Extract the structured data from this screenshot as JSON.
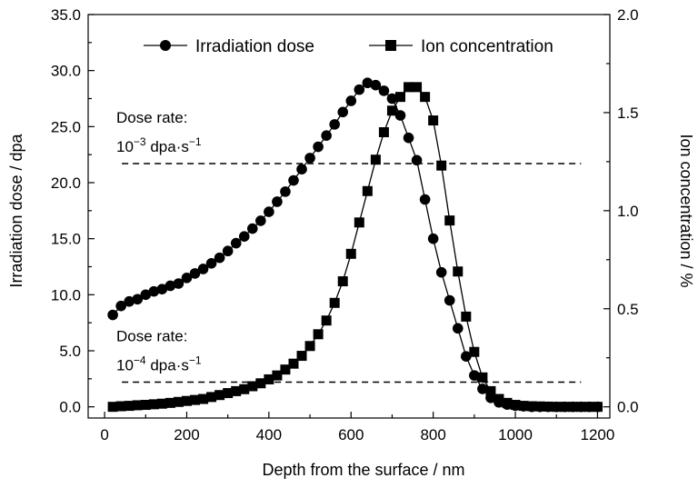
{
  "chart_data": {
    "type": "scatter",
    "title": "",
    "xlabel": "Depth from the surface / nm",
    "ylabel": "Irradiation dose / dpa",
    "y2label": "Ion concentration / %",
    "xlim": [
      -40,
      1230
    ],
    "ylim": [
      -1,
      35
    ],
    "y2lim": [
      -0.0571,
      2.0
    ],
    "x_ticks": [
      0,
      200,
      400,
      600,
      800,
      1000,
      1200
    ],
    "x_tick_labels": [
      "0",
      "200",
      "400",
      "600",
      "800",
      "1000",
      "1200"
    ],
    "y_ticks": [
      0,
      5,
      10,
      15,
      20,
      25,
      30,
      35
    ],
    "y_tick_labels": [
      "0.0",
      "5.0",
      "10.0",
      "15.0",
      "20.0",
      "25.0",
      "30.0",
      "35.0"
    ],
    "y2_ticks": [
      0,
      0.5,
      1.0,
      1.5,
      2.0
    ],
    "y2_tick_labels": [
      "0.0",
      "0.5",
      "1.0",
      "1.5",
      "2.0"
    ],
    "grid": false,
    "legend_position": "top",
    "legend": [
      "Irradiation dose",
      "Ion concentration"
    ],
    "series": [
      {
        "name": "Irradiation dose",
        "axis": "left",
        "marker": "circle",
        "x": [
          20,
          40,
          60,
          80,
          100,
          120,
          140,
          160,
          180,
          200,
          220,
          240,
          260,
          280,
          300,
          320,
          340,
          360,
          380,
          400,
          420,
          440,
          460,
          480,
          500,
          520,
          540,
          560,
          580,
          600,
          620,
          640,
          660,
          680,
          700,
          720,
          740,
          760,
          780,
          800,
          820,
          840,
          860,
          880,
          900,
          920,
          940,
          960,
          980,
          1000,
          1020,
          1040,
          1060,
          1080,
          1100,
          1120,
          1140,
          1160,
          1180,
          1200
        ],
        "y": [
          8.2,
          9.0,
          9.4,
          9.6,
          10.0,
          10.3,
          10.5,
          10.8,
          11.0,
          11.5,
          11.9,
          12.3,
          12.8,
          13.3,
          13.9,
          14.6,
          15.2,
          15.9,
          16.6,
          17.4,
          18.3,
          19.2,
          20.2,
          21.2,
          22.2,
          23.2,
          24.2,
          25.2,
          26.3,
          27.3,
          28.3,
          28.9,
          28.7,
          28.2,
          27.5,
          26.0,
          24.0,
          22.0,
          18.5,
          15.0,
          12.0,
          9.5,
          7.0,
          4.5,
          2.8,
          1.6,
          0.8,
          0.4,
          0.2,
          0.1,
          0.05,
          0.0,
          0.0,
          0.0,
          0.0,
          0.0,
          0.0,
          0.0,
          0.0,
          0.0
        ]
      },
      {
        "name": "Ion concentration",
        "axis": "right",
        "marker": "square",
        "x": [
          20,
          40,
          60,
          80,
          100,
          120,
          140,
          160,
          180,
          200,
          220,
          240,
          260,
          280,
          300,
          320,
          340,
          360,
          380,
          400,
          420,
          440,
          460,
          480,
          500,
          520,
          540,
          560,
          580,
          600,
          620,
          640,
          660,
          680,
          700,
          720,
          740,
          760,
          780,
          800,
          820,
          840,
          860,
          880,
          900,
          920,
          940,
          960,
          980,
          1000,
          1020,
          1040,
          1060,
          1080,
          1100,
          1120,
          1140,
          1160,
          1180,
          1200
        ],
        "y": [
          0.0,
          0.003,
          0.005,
          0.008,
          0.01,
          0.013,
          0.016,
          0.02,
          0.025,
          0.03,
          0.035,
          0.04,
          0.05,
          0.06,
          0.07,
          0.08,
          0.09,
          0.105,
          0.12,
          0.14,
          0.16,
          0.19,
          0.22,
          0.26,
          0.31,
          0.37,
          0.44,
          0.53,
          0.64,
          0.78,
          0.94,
          1.1,
          1.26,
          1.4,
          1.51,
          1.58,
          1.63,
          1.63,
          1.58,
          1.46,
          1.23,
          0.95,
          0.69,
          0.46,
          0.28,
          0.15,
          0.08,
          0.04,
          0.02,
          0.01,
          0.005,
          0.003,
          0.002,
          0.001,
          0.0,
          0.0,
          0.0,
          0.0,
          0.0,
          0.0
        ]
      }
    ],
    "reference_lines": [
      {
        "axis": "left",
        "y": 21.7,
        "x_range": [
          20,
          1160
        ],
        "label_line1": "Dose rate:",
        "label_line2_base": "10",
        "label_line2_exp": "−3",
        "label_line2_unit": " dpa·s",
        "label_line2_unit_exp": "−1"
      },
      {
        "axis": "left",
        "y": 2.2,
        "x_range": [
          20,
          1160
        ],
        "label_line1": "Dose rate:",
        "label_line2_base": "10",
        "label_line2_exp": "−4",
        "label_line2_unit": " dpa·s",
        "label_line2_unit_exp": "−1"
      }
    ]
  }
}
